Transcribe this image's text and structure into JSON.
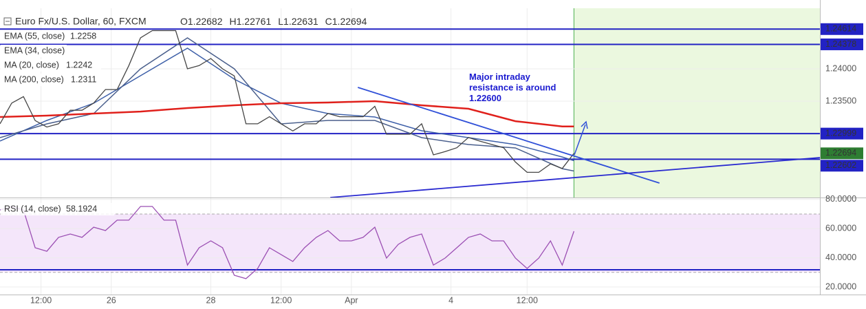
{
  "chart_data": [
    {
      "type": "line",
      "title": "Euro Fx/U.S. Dollar, 60, FXCM",
      "ohlc": [
        {
          "label": "O",
          "value": 1.22682
        },
        {
          "label": "H",
          "value": 1.22761
        },
        {
          "label": "L",
          "value": 1.22631
        },
        {
          "label": "C",
          "value": 1.22694
        }
      ],
      "color": "#444444",
      "x": [
        0,
        2,
        4,
        6,
        8,
        10,
        12,
        14,
        16,
        18,
        20,
        22,
        24,
        26,
        28,
        30,
        32,
        34,
        36,
        38,
        40,
        42,
        44,
        46,
        48,
        50,
        52,
        54,
        56,
        58,
        60,
        62,
        64,
        66,
        68,
        70,
        72,
        74,
        76,
        78,
        80,
        82,
        84,
        86,
        88,
        90,
        92,
        94,
        96,
        98
      ],
      "values": [
        1.2315,
        1.2347,
        1.2357,
        1.232,
        1.231,
        1.2315,
        1.2336,
        1.2336,
        1.2347,
        1.2368,
        1.2368,
        1.2405,
        1.2448,
        1.2459,
        1.2459,
        1.2459,
        1.24,
        1.2405,
        1.2416,
        1.24,
        1.2389,
        1.2315,
        1.2315,
        1.2326,
        1.2315,
        1.2304,
        1.2315,
        1.2315,
        1.2331,
        1.2326,
        1.2326,
        1.2326,
        1.2342,
        1.2299,
        1.2299,
        1.2299,
        1.2315,
        1.2267,
        1.2272,
        1.2278,
        1.2294,
        1.2288,
        1.2283,
        1.2278,
        1.2256,
        1.224,
        1.224,
        1.2253,
        1.2246,
        1.22694
      ],
      "series": [
        {
          "name": "EMA (55, close)",
          "color": "#3d5fa8",
          "x": [
            0,
            8,
            16,
            24,
            32,
            40,
            48,
            56,
            64,
            72,
            80,
            88,
            96,
            98
          ],
          "values": [
            1.22883,
            1.23202,
            1.23468,
            1.23894,
            1.24319,
            1.2384,
            1.23468,
            1.23309,
            1.23255,
            1.23043,
            1.22936,
            1.2283,
            1.22638,
            1.2258
          ]
        },
        {
          "name": "MA (20, close)",
          "color": "#4a5f8c",
          "x": [
            0,
            8,
            16,
            24,
            32,
            40,
            48,
            56,
            64,
            72,
            80,
            88,
            96,
            98
          ],
          "values": [
            1.22936,
            1.23149,
            1.23309,
            1.24,
            1.24479,
            1.24,
            1.23149,
            1.23202,
            1.23202,
            1.22936,
            1.2283,
            1.22777,
            1.22457,
            1.2242
          ]
        },
        {
          "name": "MA (200, close)",
          "color": "#e0201b",
          "x": [
            0,
            8,
            16,
            24,
            32,
            40,
            48,
            56,
            64,
            72,
            80,
            88,
            96,
            98
          ],
          "values": [
            1.23255,
            1.23277,
            1.23309,
            1.2334,
            1.23394,
            1.23436,
            1.23468,
            1.23479,
            1.235,
            1.23436,
            1.23383,
            1.23191,
            1.2311,
            1.2311
          ]
        }
      ],
      "inactive_indicators": [
        "EMA (34, close)"
      ],
      "hlines": [
        1.24614,
        1.24378,
        1.22999,
        1.22602
      ],
      "hline_color": "#2222c4",
      "trendlines": [
        {
          "x": [
            61.1,
            112.6
          ],
          "y": [
            1.23713,
            1.22234
          ],
          "color": "#3050d8"
        },
        {
          "x": [
            56.4,
            140
          ],
          "y": [
            1.22011,
            1.22628
          ],
          "color": "#2a2ad0"
        }
      ],
      "highlight_xlim": [
        98,
        140
      ],
      "annotation": [
        "Major intraday",
        "resistance is around",
        "1.22600"
      ],
      "xlim": [
        0,
        140
      ],
      "xticks": [
        {
          "value": 7,
          "label": "12:00"
        },
        {
          "value": 19,
          "label": "26"
        },
        {
          "value": 36,
          "label": "28"
        },
        {
          "value": 48,
          "label": "12:00"
        },
        {
          "value": 60,
          "label": "Apr"
        },
        {
          "value": 77,
          "label": "4"
        },
        {
          "value": 90,
          "label": "12:00"
        }
      ],
      "ylim": [
        1.22011,
        1.24936
      ],
      "yticks": [
        {
          "value": 1.235,
          "label": "1.23500"
        },
        {
          "value": 1.24,
          "label": "1.24000"
        }
      ],
      "grid": true
    },
    {
      "type": "line",
      "title": "RSI (14, close)",
      "color": "#9b4fb3",
      "x": [
        0,
        2,
        4,
        6,
        8,
        10,
        12,
        14,
        16,
        18,
        20,
        22,
        24,
        26,
        28,
        30,
        32,
        34,
        36,
        38,
        40,
        42,
        44,
        46,
        48,
        50,
        52,
        54,
        56,
        58,
        60,
        62,
        64,
        66,
        68,
        70,
        72,
        74,
        76,
        78,
        80,
        82,
        84,
        86,
        88,
        90,
        92,
        94,
        96,
        98
      ],
      "values": [
        72.8,
        75,
        72.8,
        46.9,
        44.5,
        54,
        56.3,
        54,
        61,
        58.7,
        65.8,
        65.8,
        75.2,
        75.2,
        65.8,
        65.8,
        35,
        46.9,
        51.6,
        46.9,
        28,
        25.7,
        32.7,
        46.9,
        42.2,
        37.5,
        46.9,
        54,
        58.7,
        51.6,
        51.6,
        54,
        61,
        39.8,
        49.2,
        54,
        56.3,
        35,
        39.8,
        46.9,
        54,
        56.3,
        51.6,
        51.6,
        39.8,
        32.7,
        39.8,
        51.6,
        35,
        58.1924
      ],
      "band": [
        30,
        70
      ],
      "hlines": [
        31.8
      ],
      "xlim": [
        0,
        140
      ],
      "ylim": [
        14.81,
        80.85
      ],
      "yticks": [
        {
          "value": 20,
          "label": "20.0000"
        },
        {
          "value": 40,
          "label": "40.0000"
        },
        {
          "value": 60,
          "label": "60.0000"
        },
        {
          "value": 80,
          "label": "80.0000"
        }
      ],
      "grid": true
    }
  ]
}
